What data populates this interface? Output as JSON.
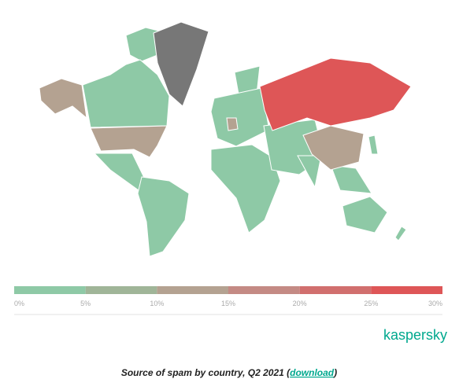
{
  "map": {
    "regions": [
      {
        "value": 28
      },
      {
        "value": 12
      },
      {
        "value": 13
      },
      {
        "value": 13
      }
    ],
    "legend": {
      "colors": [
        "#8ec9a6",
        "#a0b598",
        "#b4a291",
        "#c48a84",
        "#d16f6e",
        "#de5657"
      ],
      "ticks": [
        {
          "value": 0,
          "label": "0%"
        },
        {
          "value": 5,
          "label": "5%"
        },
        {
          "value": 10,
          "label": "10%"
        },
        {
          "value": 15,
          "label": "15%"
        },
        {
          "value": 20,
          "label": "20%"
        },
        {
          "value": 25,
          "label": "25%"
        },
        {
          "value": 30,
          "label": "30%"
        }
      ]
    }
  },
  "brand": "kaspersky",
  "caption": {
    "text": "Source of spam by country, Q2 2021 (",
    "link": "download",
    "end": ")"
  }
}
